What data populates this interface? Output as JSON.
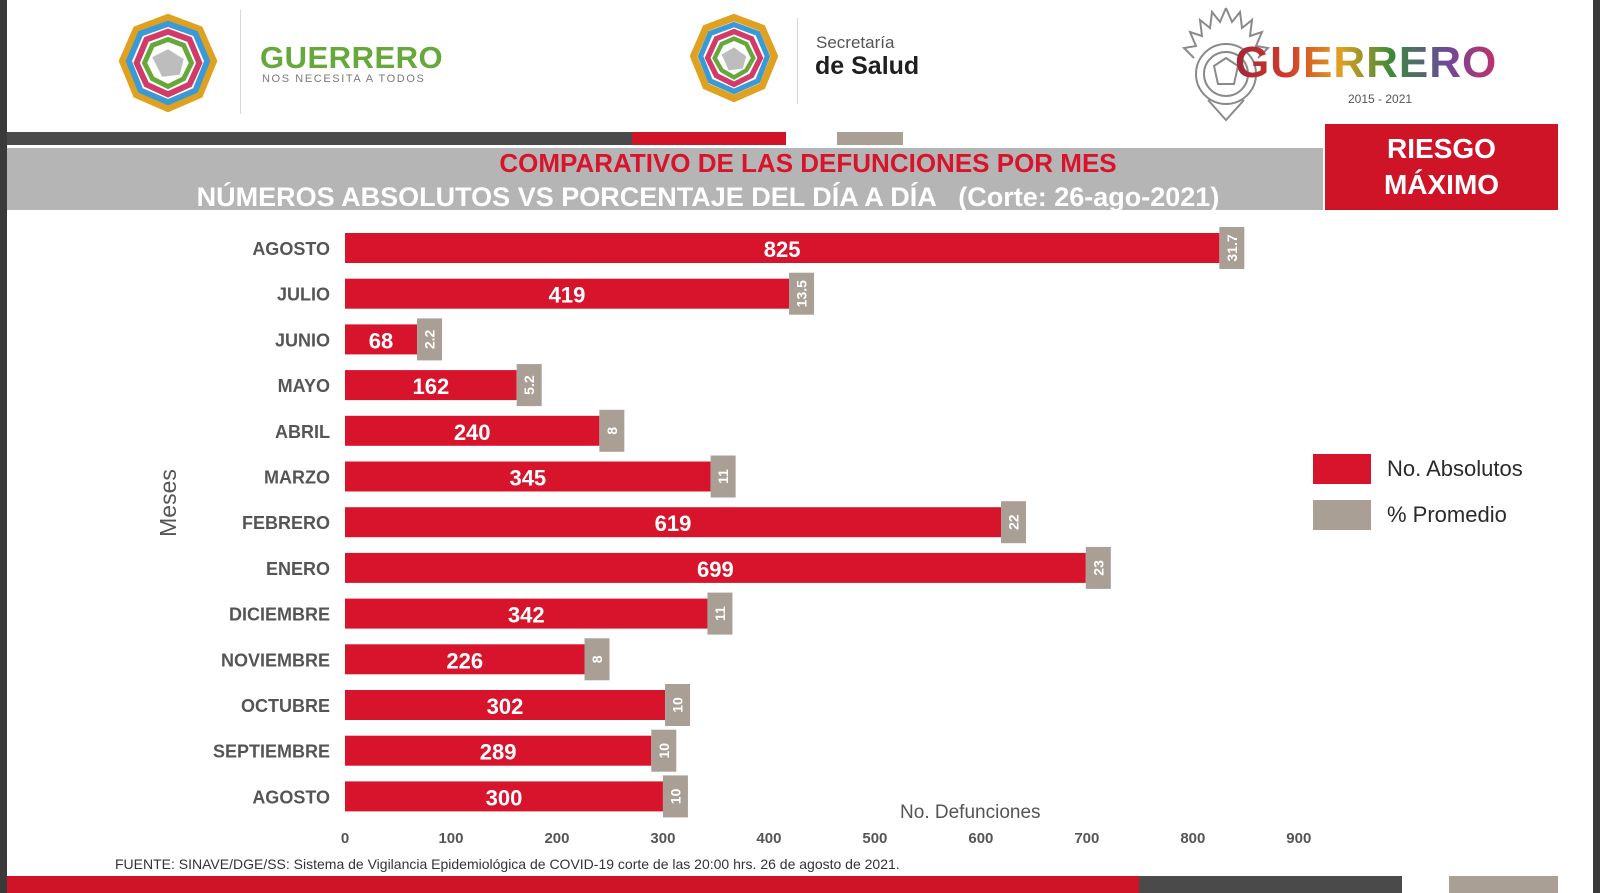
{
  "header": {
    "state_brand": {
      "name": "GUERRERO",
      "tagline": "NOS NECESITA A TODOS"
    },
    "health_brand": {
      "line1": "Secretaría",
      "line2": "de Salud"
    },
    "government": {
      "name": "GUERRERO",
      "years": "2015 - 2021"
    }
  },
  "title": {
    "line1": "COMPARATIVO DE LAS DEFUNCIONES POR MES",
    "line2": "NÚMEROS ABSOLUTOS VS PORCENTAJE DEL DÍA A DÍA   (Corte: 26-ago-2021)"
  },
  "risk": {
    "line1": "RIESGO",
    "line2": "MÁXIMO"
  },
  "colors": {
    "absolute": "#d8142c",
    "percent": "#aa9f95",
    "title_band": "#b5b5b5"
  },
  "chart_data": {
    "type": "bar",
    "orientation": "horizontal",
    "categories": [
      "AGOSTO",
      "JULIO",
      "JUNIO",
      "MAYO",
      "ABRIL",
      "MARZO",
      "FEBRERO",
      "ENERO",
      "DICIEMBRE",
      "NOVIEMBRE",
      "OCTUBRE",
      "SEPTIEMBRE",
      "AGOSTO"
    ],
    "series": [
      {
        "name": "No. Absolutos",
        "values": [
          825,
          419,
          68,
          162,
          240,
          345,
          619,
          699,
          342,
          226,
          302,
          289,
          300
        ]
      },
      {
        "name": "% Promedio",
        "values": [
          31.7,
          13.5,
          2.2,
          5.2,
          8,
          11,
          22,
          23,
          11,
          8,
          10,
          10,
          10
        ],
        "labels": [
          "31.7",
          "13.5",
          "2.2",
          "5.2",
          "8",
          "11",
          "22",
          "23",
          "11",
          "8",
          "10",
          "10",
          "10"
        ]
      }
    ],
    "xlabel": "No. Defunciones",
    "ylabel": "Meses",
    "xlim": [
      0,
      900
    ],
    "xticks": [
      0,
      100,
      200,
      300,
      400,
      500,
      600,
      700,
      800,
      900
    ],
    "legend": "right"
  },
  "footer": {
    "source": "FUENTE: SINAVE/DGE/SS:  Sistema de Vigilancia Epidemiológica de COVID-19 corte de las 20:00 hrs. 26 de agosto de 2021."
  }
}
